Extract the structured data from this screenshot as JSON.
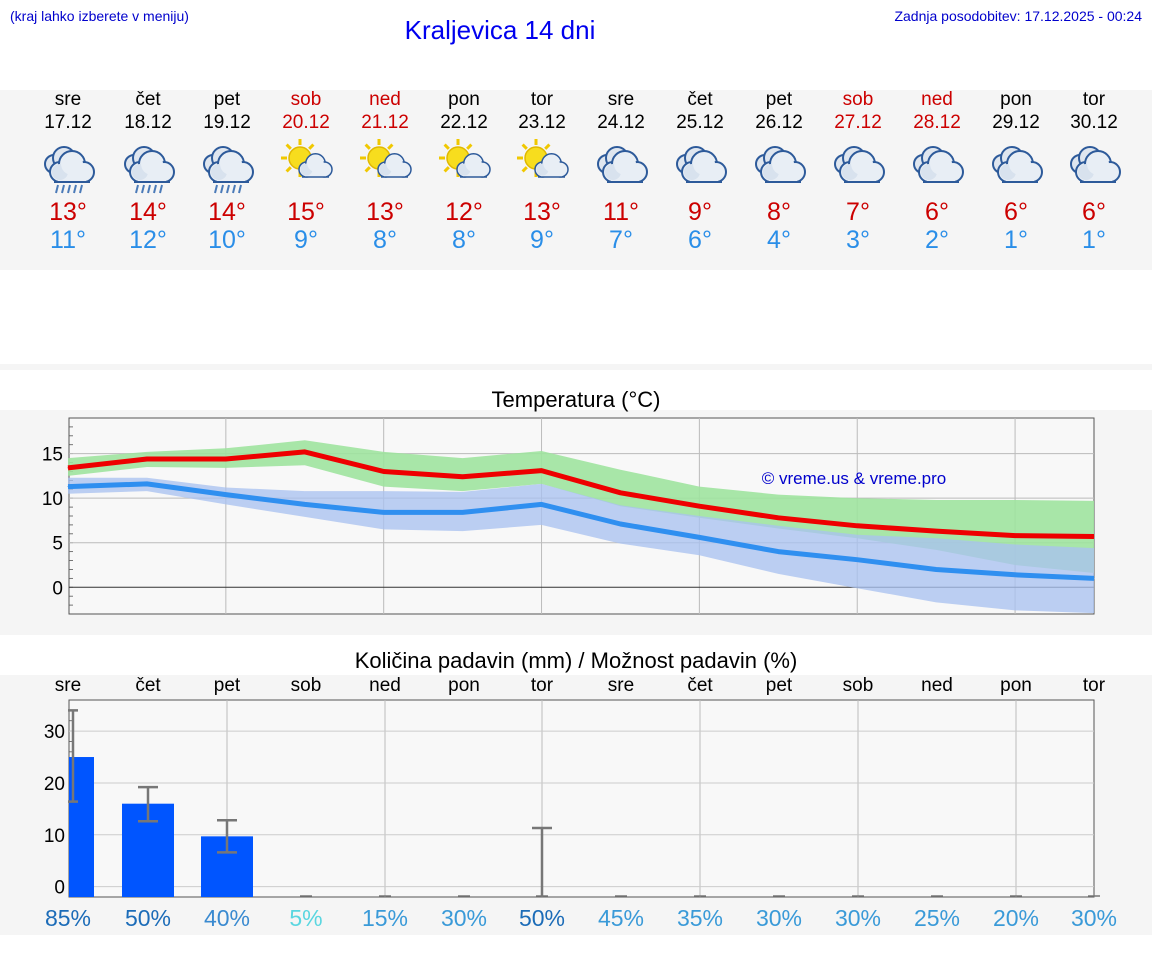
{
  "header": {
    "menu_hint": "(kraj lahko izberete v meniju)",
    "title": "Kraljevica 14 dni",
    "updated": "Zadnja posodobitev: 17.12.2025 - 00:24"
  },
  "days": [
    {
      "name": "sre",
      "date": "17.12",
      "max": "13°",
      "min": "11°",
      "icon": "rain-icon",
      "weekend": false
    },
    {
      "name": "čet",
      "date": "18.12",
      "max": "14°",
      "min": "12°",
      "icon": "rain-icon",
      "weekend": false
    },
    {
      "name": "pet",
      "date": "19.12",
      "max": "14°",
      "min": "10°",
      "icon": "rain-icon",
      "weekend": false
    },
    {
      "name": "sob",
      "date": "20.12",
      "max": "15°",
      "min": "9°",
      "icon": "sun-cloud-icon",
      "weekend": true
    },
    {
      "name": "ned",
      "date": "21.12",
      "max": "13°",
      "min": "8°",
      "icon": "sun-cloud-icon",
      "weekend": true
    },
    {
      "name": "pon",
      "date": "22.12",
      "max": "12°",
      "min": "8°",
      "icon": "sun-cloud-icon",
      "weekend": false
    },
    {
      "name": "tor",
      "date": "23.12",
      "max": "13°",
      "min": "9°",
      "icon": "sun-cloud-icon",
      "weekend": false
    },
    {
      "name": "sre",
      "date": "24.12",
      "max": "11°",
      "min": "7°",
      "icon": "cloudy-icon",
      "weekend": false
    },
    {
      "name": "čet",
      "date": "25.12",
      "max": "9°",
      "min": "6°",
      "icon": "cloudy-icon",
      "weekend": false
    },
    {
      "name": "pet",
      "date": "26.12",
      "max": "8°",
      "min": "4°",
      "icon": "cloudy-icon",
      "weekend": false
    },
    {
      "name": "sob",
      "date": "27.12",
      "max": "7°",
      "min": "3°",
      "icon": "cloudy-icon",
      "weekend": true
    },
    {
      "name": "ned",
      "date": "28.12",
      "max": "6°",
      "min": "2°",
      "icon": "cloudy-icon",
      "weekend": true
    },
    {
      "name": "pon",
      "date": "29.12",
      "max": "6°",
      "min": "1°",
      "icon": "cloudy-icon",
      "weekend": false
    },
    {
      "name": "tor",
      "date": "30.12",
      "max": "6°",
      "min": "1°",
      "icon": "cloudy-icon",
      "weekend": false
    }
  ],
  "colors": {
    "weekday": "#000000",
    "weekend": "#cc0000",
    "max_line": "#ee0000",
    "min_line": "#2f8ff0",
    "max_band": "#9fe39f",
    "min_band": "#a9c2f0",
    "bar": "#0055ff",
    "credit": "#0000cc"
  },
  "chart_data": [
    {
      "type": "line",
      "title": "Temperatura (°C)",
      "annotation": "© vreme.us & vreme.pro",
      "ylim": [
        -3,
        19
      ],
      "yticks": [
        "0",
        "5",
        "10",
        "15"
      ],
      "ytick_values": [
        0,
        5,
        10,
        15
      ],
      "x": [
        0,
        1,
        2,
        3,
        4,
        5,
        6,
        7,
        8,
        9,
        10,
        11,
        12,
        13
      ],
      "series": [
        {
          "name": "max",
          "values": [
            13.4,
            14.4,
            14.4,
            15.2,
            13.0,
            12.4,
            13.1,
            10.6,
            9.1,
            7.8,
            6.9,
            6.3,
            5.8,
            5.7
          ],
          "band_low": [
            12.5,
            13.5,
            13.4,
            13.7,
            11.3,
            10.8,
            11.6,
            9.1,
            7.8,
            6.6,
            5.5,
            4.2,
            2.5,
            1.6
          ],
          "band_high": [
            14.5,
            15.2,
            15.6,
            16.5,
            15.2,
            14.5,
            15.3,
            13.2,
            11.3,
            10.4,
            10.0,
            9.8,
            9.8,
            9.7
          ]
        },
        {
          "name": "min",
          "values": [
            11.3,
            11.6,
            10.4,
            9.3,
            8.4,
            8.4,
            9.3,
            7.1,
            5.6,
            4.0,
            3.1,
            2.0,
            1.4,
            1.0
          ],
          "band_low": [
            10.5,
            10.8,
            9.3,
            7.9,
            6.5,
            6.3,
            7.0,
            4.9,
            3.6,
            1.5,
            -0.1,
            -1.7,
            -2.6,
            -2.9
          ],
          "band_high": [
            12.3,
            12.3,
            11.2,
            10.8,
            10.8,
            10.7,
            11.6,
            9.2,
            8.0,
            6.9,
            5.9,
            5.5,
            4.8,
            4.4
          ]
        }
      ]
    },
    {
      "type": "bar",
      "title": "Količina padavin (mm) / Možnost padavin (%)",
      "ylim": [
        -2,
        36
      ],
      "yticks": [
        "0",
        "10",
        "20",
        "30"
      ],
      "ytick_values": [
        0,
        10,
        20,
        30
      ],
      "categories": [
        "sre",
        "čet",
        "pet",
        "sob",
        "ned",
        "pon",
        "tor",
        "sre",
        "čet",
        "pet",
        "sob",
        "ned",
        "pon",
        "tor"
      ],
      "values": [
        25.0,
        16.0,
        9.7,
        0,
        0,
        0,
        0,
        0,
        0,
        0,
        0,
        0,
        0,
        0
      ],
      "error_low": [
        16.4,
        12.6,
        6.6,
        0,
        0,
        0,
        0,
        0,
        0,
        0,
        0,
        0,
        0,
        0
      ],
      "error_high": [
        34.0,
        19.2,
        12.8,
        0,
        0,
        0,
        11.3,
        0,
        0,
        0,
        0,
        0,
        0,
        0
      ],
      "chance": [
        "85%",
        "50%",
        "40%",
        "5%",
        "15%",
        "30%",
        "50%",
        "45%",
        "35%",
        "30%",
        "30%",
        "25%",
        "20%",
        "30%"
      ],
      "chance_colors": [
        "#1c6cb8",
        "#1c6cb8",
        "#3a8ad0",
        "#5ad6e0",
        "#3a9ad8",
        "#3a9ad8",
        "#1c6cb8",
        "#3a9ad8",
        "#3a9ad8",
        "#3a9ad8",
        "#3a9ad8",
        "#3a9ad8",
        "#3a9ad8",
        "#3a9ad8"
      ]
    }
  ]
}
